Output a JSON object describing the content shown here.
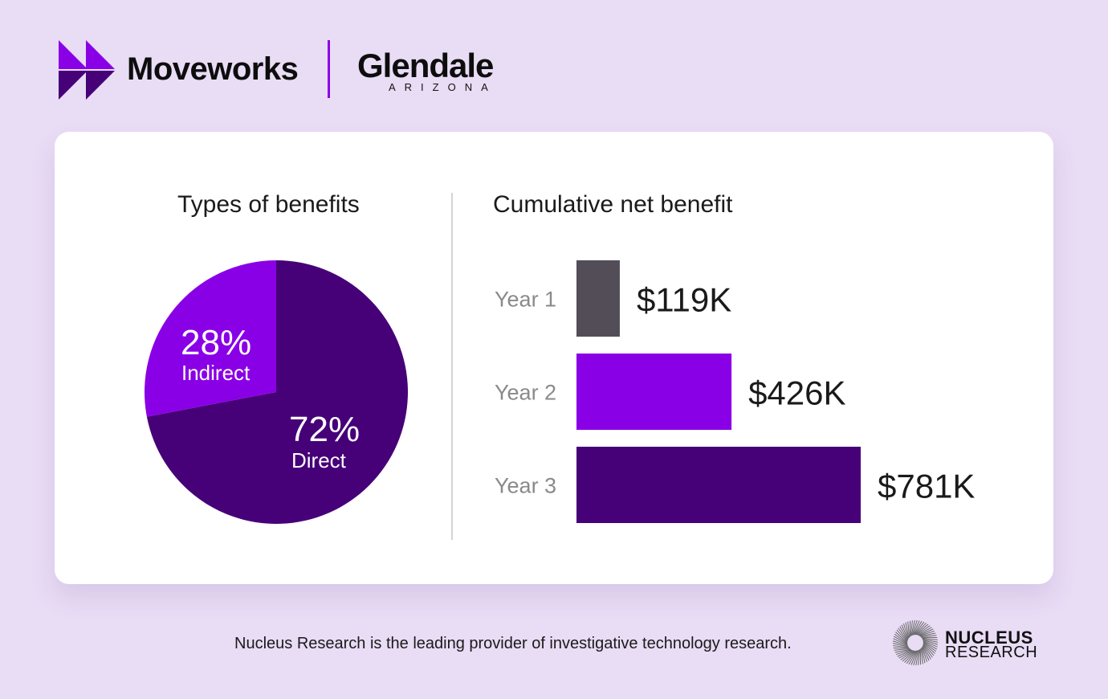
{
  "logos": {
    "moveworks": "Moveworks",
    "glendale": "Glendale",
    "glendale_sub": "ARIZONA",
    "nucleus_line1": "NUCLEUS",
    "nucleus_line2": "RESEARCH"
  },
  "footer": "Nucleus Research is the leading provider of investigative technology research.",
  "colors": {
    "background": "#e9dcf5",
    "indirect": "#8a00e6",
    "direct": "#460078",
    "year1": "#524d57",
    "year2": "#8a00e6",
    "year3": "#460078"
  },
  "chart_data": [
    {
      "type": "pie",
      "title": "Types of benefits",
      "slices": [
        {
          "name": "Indirect",
          "value": 28,
          "label": "28%",
          "color": "#8a00e6"
        },
        {
          "name": "Direct",
          "value": 72,
          "label": "72%",
          "color": "#460078"
        }
      ]
    },
    {
      "type": "bar",
      "orientation": "horizontal",
      "title": "Cumulative net benefit",
      "categories": [
        "Year 1",
        "Year 2",
        "Year 3"
      ],
      "values": [
        119,
        426,
        781
      ],
      "labels": [
        "$119K",
        "$426K",
        "$781K"
      ],
      "unit": "$K",
      "colors": [
        "#524d57",
        "#8a00e6",
        "#460078"
      ]
    }
  ]
}
